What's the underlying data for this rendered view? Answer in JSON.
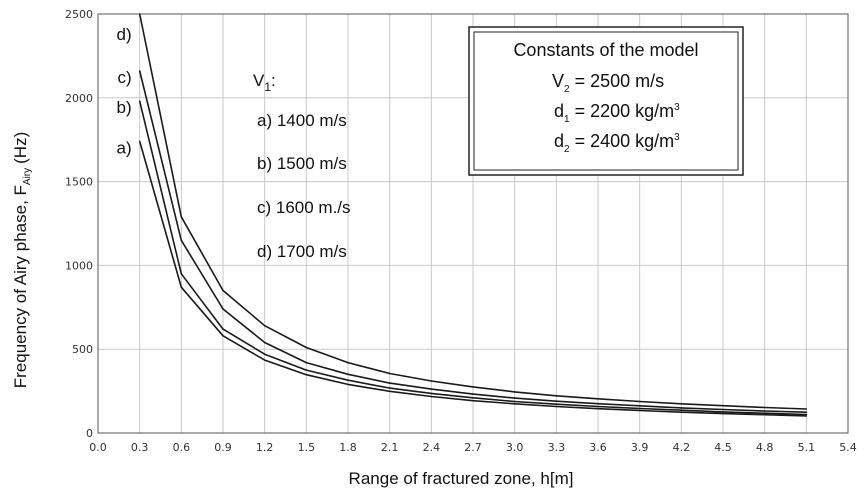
{
  "chart_data": {
    "type": "line",
    "title": "",
    "xlabel": "Range of fractured zone, h[m]",
    "ylabel": {
      "main": "Frequency of Airy phase, F",
      "sub": "Airy",
      "unit": "(Hz)"
    },
    "xlim": [
      0.0,
      5.4
    ],
    "ylim": [
      0,
      2500
    ],
    "x_ticks": [
      "0.0",
      "0.3",
      "0.6",
      "0.9",
      "1.2",
      "1.5",
      "1.8",
      "2.1",
      "2.4",
      "2.7",
      "3.0",
      "3.3",
      "3.6",
      "3.9",
      "4.2",
      "4.5",
      "4.8",
      "5.1",
      "5.4"
    ],
    "y_ticks": [
      "0",
      "500",
      "1000",
      "1500",
      "2000",
      "2500"
    ],
    "grid": true,
    "x": [
      0.3,
      0.6,
      0.9,
      1.2,
      1.5,
      1.8,
      2.1,
      2.4,
      2.7,
      3.0,
      3.3,
      3.6,
      3.9,
      4.2,
      4.5,
      4.8,
      5.1
    ],
    "series": [
      {
        "name": "a)",
        "values": [
          1740,
          870,
          580,
          435,
          348,
          290,
          249,
          218,
          193,
          174,
          158,
          145,
          134,
          124,
          116,
          109,
          102
        ]
      },
      {
        "name": "b)",
        "values": [
          1980,
          950,
          620,
          470,
          375,
          315,
          268,
          236,
          210,
          188,
          172,
          158,
          146,
          136,
          126,
          118,
          110
        ]
      },
      {
        "name": "c)",
        "values": [
          2160,
          1150,
          740,
          540,
          420,
          350,
          298,
          262,
          232,
          208,
          190,
          175,
          162,
          150,
          140,
          131,
          124
        ]
      },
      {
        "name": "d)",
        "values": [
          2500,
          1290,
          850,
          640,
          510,
          420,
          355,
          310,
          275,
          245,
          222,
          204,
          188,
          174,
          163,
          152,
          143
        ]
      }
    ],
    "annotations": {
      "v1_label": "V",
      "v1_sub": "1",
      "v1_colon": ":",
      "lines": [
        "a) 1400 m/s",
        "b) 1500 m/s",
        "c) 1600 m./s",
        "d) 1700 m/s"
      ]
    },
    "constants_box": {
      "title": "Constants of the model",
      "v2": {
        "main": "V",
        "sub": "2",
        "rest": " = 2500 m/s"
      },
      "d1": {
        "main": "d",
        "sub": "1",
        "rest": " = 2200 kg/m",
        "sup": "3"
      },
      "d2": {
        "main": "d",
        "sub": "2",
        "rest": " = 2400 kg/m",
        "sup": "3"
      }
    }
  }
}
